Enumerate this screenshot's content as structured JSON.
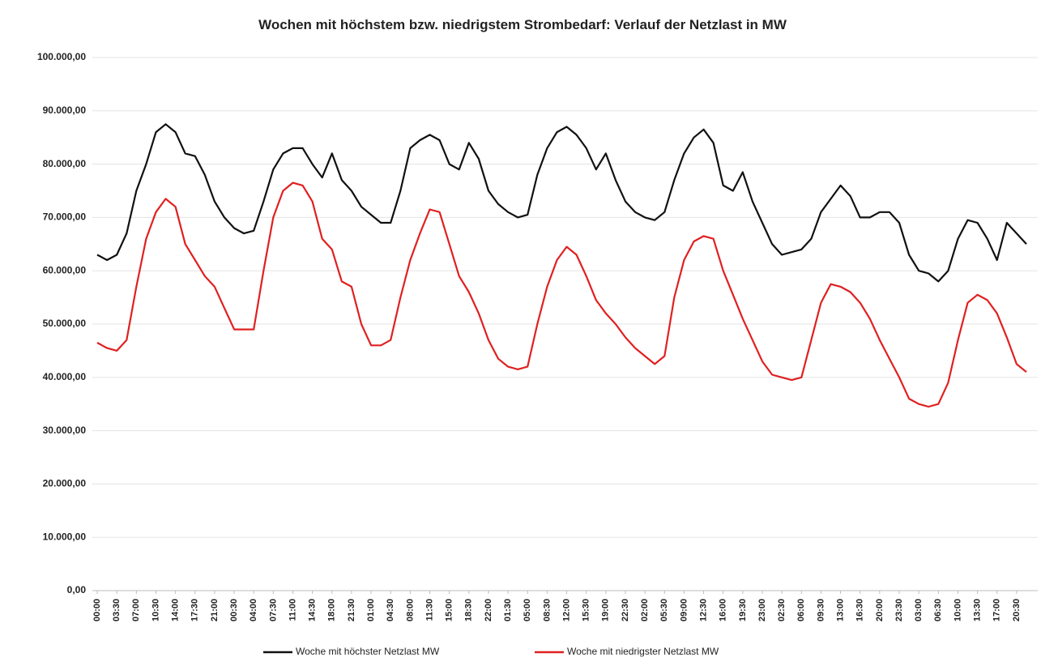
{
  "chart_data": {
    "type": "line",
    "title": "Wochen mit höchstem bzw. niedrigstem Strombedarf: Verlauf der Netzlast in MW",
    "categories": [
      "00:00",
      null,
      "03:30",
      null,
      "07:00",
      null,
      "10:30",
      null,
      "14:00",
      null,
      "17:30",
      null,
      "21:00",
      null,
      "00:30",
      null,
      "04:00",
      null,
      "07:30",
      null,
      "11:00",
      null,
      "14:30",
      null,
      "18:00",
      null,
      "21:30",
      null,
      "01:00",
      null,
      "04:30",
      null,
      "08:00",
      null,
      "11:30",
      null,
      "15:00",
      null,
      "18:30",
      null,
      "22:00",
      null,
      "01:30",
      null,
      "05:00",
      null,
      "08:30",
      null,
      "12:00",
      null,
      "15:30",
      null,
      "19:00",
      null,
      "22:30",
      null,
      "02:00",
      null,
      "05:30",
      null,
      "09:00",
      null,
      "12:30",
      null,
      "16:00",
      null,
      "19:30",
      null,
      "23:00",
      null,
      "02:30",
      null,
      "06:00",
      null,
      "09:30",
      null,
      "13:00",
      null,
      "16:30",
      null,
      "20:00",
      null,
      "23:30",
      null,
      "03:00",
      null,
      "06:30",
      null,
      "10:00",
      null,
      "13:30",
      null,
      "17:00",
      null,
      "20:30",
      null
    ],
    "series": [
      {
        "name": "Woche mit höchster Netzlast MW",
        "color": "#111111",
        "values": [
          63000,
          62000,
          63000,
          67000,
          75000,
          80000,
          86000,
          87500,
          86000,
          82000,
          81500,
          78000,
          73000,
          70000,
          68000,
          67000,
          67500,
          73000,
          79000,
          82000,
          83000,
          83000,
          80000,
          77500,
          82000,
          77000,
          75000,
          72000,
          70500,
          69000,
          69000,
          75000,
          83000,
          84500,
          85500,
          84500,
          80000,
          79000,
          84000,
          81000,
          75000,
          72500,
          71000,
          70000,
          70500,
          78000,
          83000,
          86000,
          87000,
          85500,
          83000,
          79000,
          82000,
          77000,
          73000,
          71000,
          70000,
          69500,
          71000,
          77000,
          82000,
          85000,
          86500,
          84000,
          76000,
          75000,
          78500,
          73000,
          69000,
          65000,
          63000,
          63500,
          64000,
          66000,
          71000,
          73500,
          76000,
          74000,
          70000,
          70000,
          71000,
          71000,
          69000,
          63000,
          60000,
          59500,
          58000,
          60000,
          66000,
          69500,
          69000,
          66000,
          62000,
          69000,
          67000,
          65000
        ]
      },
      {
        "name": "Woche mit niedrigster Netzlast MW",
        "color": "#e02020",
        "values": [
          46500,
          45500,
          45000,
          47000,
          57000,
          66000,
          71000,
          73500,
          72000,
          65000,
          62000,
          59000,
          57000,
          53000,
          49000,
          49000,
          49000,
          60000,
          70000,
          75000,
          76500,
          76000,
          73000,
          66000,
          64000,
          58000,
          57000,
          50000,
          46000,
          46000,
          47000,
          55000,
          62000,
          67000,
          71500,
          71000,
          65000,
          59000,
          56000,
          52000,
          47000,
          43500,
          42000,
          41500,
          42000,
          50000,
          57000,
          62000,
          64500,
          63000,
          59000,
          54500,
          52000,
          50000,
          47500,
          45500,
          44000,
          42500,
          44000,
          55000,
          62000,
          65500,
          66500,
          66000,
          60000,
          55500,
          51000,
          47000,
          43000,
          40500,
          40000,
          39500,
          40000,
          47000,
          54000,
          57500,
          57000,
          56000,
          54000,
          51000,
          47000,
          43500,
          40000,
          36000,
          35000,
          34500,
          35000,
          39000,
          47000,
          54000,
          55500,
          54500,
          52000,
          47500,
          42500,
          41000
        ]
      }
    ],
    "ylim": [
      0,
      100000
    ],
    "yticks": [
      {
        "value": 0,
        "label": "0,00"
      },
      {
        "value": 10000,
        "label": "10.000,00"
      },
      {
        "value": 20000,
        "label": "20.000,00"
      },
      {
        "value": 30000,
        "label": "30.000,00"
      },
      {
        "value": 40000,
        "label": "40.000,00"
      },
      {
        "value": 50000,
        "label": "50.000,00"
      },
      {
        "value": 60000,
        "label": "60.000,00"
      },
      {
        "value": 70000,
        "label": "70.000,00"
      },
      {
        "value": 80000,
        "label": "80.000,00"
      },
      {
        "value": 90000,
        "label": "90.000,00"
      },
      {
        "value": 100000,
        "label": "100.000,00"
      }
    ],
    "grid": true,
    "legend": "bottom"
  }
}
